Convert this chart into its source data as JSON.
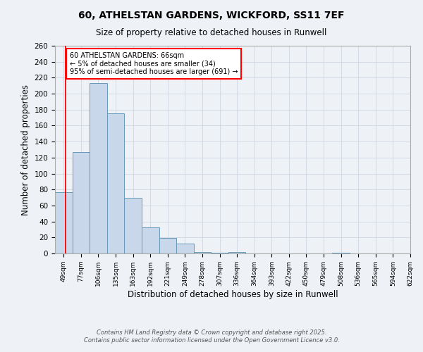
{
  "title1": "60, ATHELSTAN GARDENS, WICKFORD, SS11 7EF",
  "title2": "Size of property relative to detached houses in Runwell",
  "xlabel": "Distribution of detached houses by size in Runwell",
  "ylabel": "Number of detached properties",
  "annotation_title": "60 ATHELSTAN GARDENS: 66sqm",
  "annotation_line1": "← 5% of detached houses are smaller (34)",
  "annotation_line2": "95% of semi-detached houses are larger (691) →",
  "bin_labels": [
    "49sqm",
    "77sqm",
    "106sqm",
    "135sqm",
    "163sqm",
    "192sqm",
    "221sqm",
    "249sqm",
    "278sqm",
    "307sqm",
    "336sqm",
    "364sqm",
    "393sqm",
    "422sqm",
    "450sqm",
    "479sqm",
    "508sqm",
    "536sqm",
    "565sqm",
    "594sqm",
    "622sqm"
  ],
  "bar_heights": [
    77,
    127,
    213,
    175,
    70,
    33,
    19,
    12,
    2,
    1,
    2,
    0,
    0,
    0,
    0,
    0,
    1,
    0,
    0,
    0
  ],
  "bar_color": "#c8d8ea",
  "bar_edge_color": "#6699bb",
  "ylim": [
    0,
    260
  ],
  "yticks": [
    0,
    20,
    40,
    60,
    80,
    100,
    120,
    140,
    160,
    180,
    200,
    220,
    240,
    260
  ],
  "bg_color": "#eef2f7",
  "grid_color": "#c8d0dc",
  "footnote1": "Contains HM Land Registry data © Crown copyright and database right 2025.",
  "footnote2": "Contains public sector information licensed under the Open Government Licence v3.0."
}
